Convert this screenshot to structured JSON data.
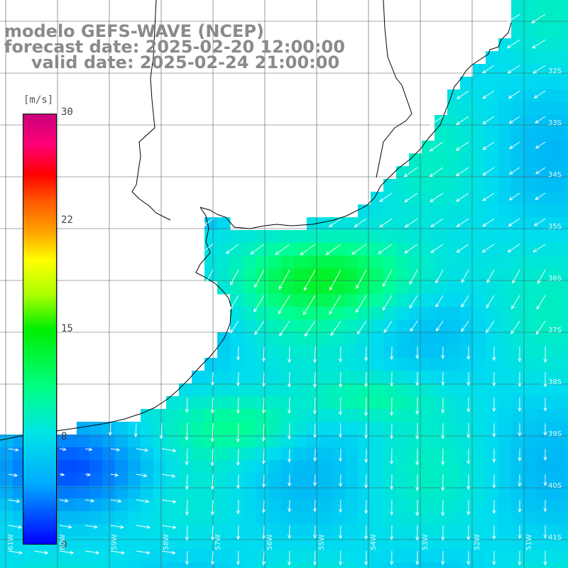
{
  "title": {
    "line1": "modelo GEFS-WAVE (NCEP)",
    "line2": "forecast date: 2025-02-20 12:00:00",
    "line3": "valid date: 2025-02-24 21:00:00"
  },
  "colorbar": {
    "unit": "[m/s]",
    "ticks": [
      "30",
      "22",
      "15",
      "8",
      "0"
    ],
    "tick_values": [
      30,
      22,
      15,
      8,
      0
    ],
    "min": 0,
    "max": 30
  },
  "lat_labels": [
    "32S",
    "33S",
    "34S",
    "35S",
    "36S",
    "37S",
    "38S",
    "39S",
    "40S",
    "41S"
  ],
  "lon_labels": [
    "61W",
    "60W",
    "59W",
    "58W",
    "57W",
    "56W",
    "55W",
    "54W",
    "53W",
    "52W",
    "51W"
  ],
  "colors": {
    "land": "#ffffff",
    "grid": "#555555",
    "coast": "#000000",
    "arrow": "#ffffff",
    "title": "#8a8a8a"
  }
}
